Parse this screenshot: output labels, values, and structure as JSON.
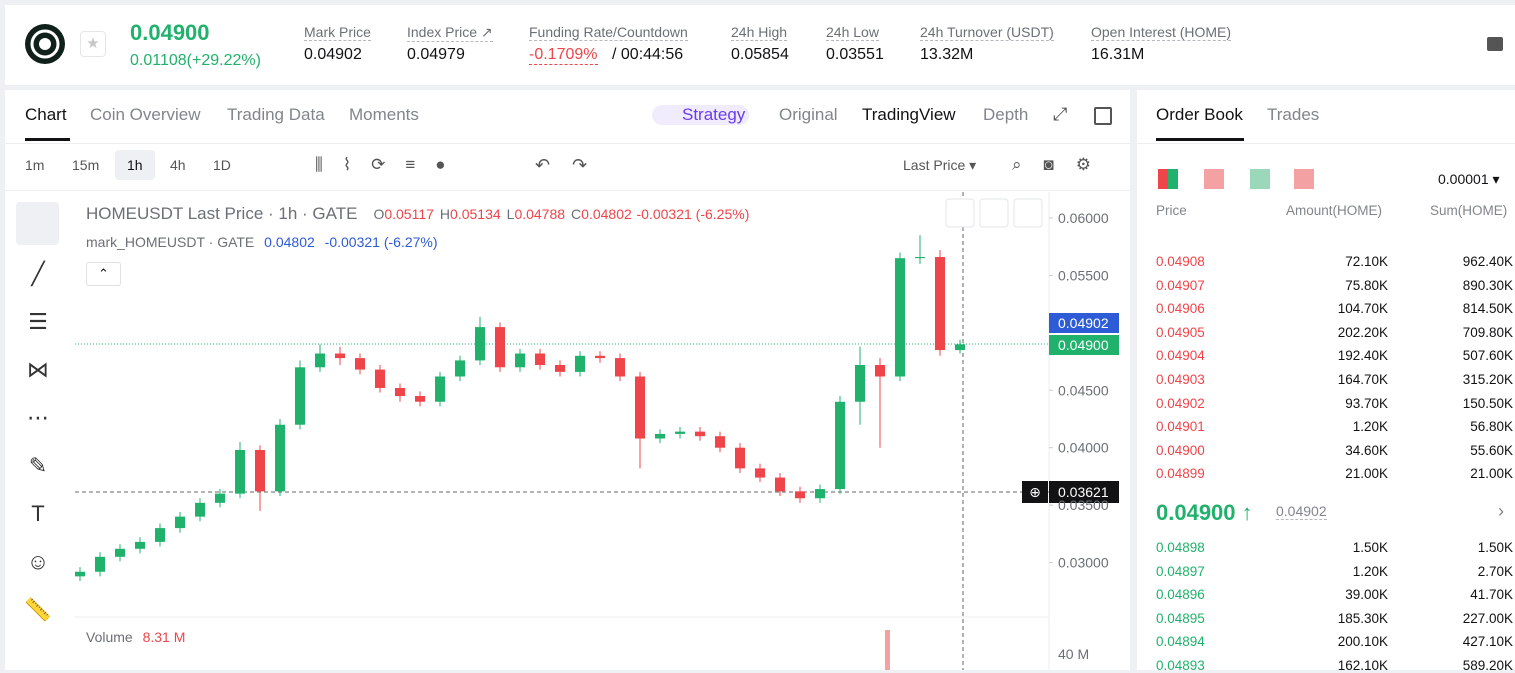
{
  "header": {
    "price": "0.04900",
    "change": "0.01108(+29.22%)",
    "stats": [
      {
        "label": "Mark Price",
        "value": "0.04902"
      },
      {
        "label": "Index Price ↗",
        "value": "0.04979"
      },
      {
        "label": "Funding Rate/Countdown",
        "value": "-0.1709%",
        "extra": "/ 00:44:56"
      },
      {
        "label": "24h High",
        "value": "0.05854"
      },
      {
        "label": "24h Low",
        "value": "0.03551"
      },
      {
        "label": "24h Turnover (USDT)",
        "value": "13.32M"
      },
      {
        "label": "Open Interest (HOME)",
        "value": "16.31M"
      }
    ]
  },
  "chart_tabs": [
    "Chart",
    "Coin Overview",
    "Trading Data",
    "Moments"
  ],
  "view_tabs": [
    "Strategy",
    "Original",
    "TradingView",
    "Depth"
  ],
  "intervals": [
    "1m",
    "15m",
    "1h",
    "4h",
    "1D"
  ],
  "price_type": "Last Price",
  "legend": {
    "title": "HOMEUSDT Last Price · 1h · GATE",
    "ohlc": [
      {
        "key": "O",
        "value": "0.05117"
      },
      {
        "key": "H",
        "value": "0.05134"
      },
      {
        "key": "L",
        "value": "0.04788"
      },
      {
        "key": "C",
        "value": "0.04802"
      }
    ],
    "change": "-0.00321 (-6.25%)",
    "mark_title": "mark_HOMEUSDT · GATE",
    "mark_value": "0.04802",
    "mark_change": "-0.00321 (-6.27%)"
  },
  "price_tags": {
    "mark": "0.04902",
    "last": "0.04900",
    "crosshair": "0.03621"
  },
  "volume": {
    "label": "Volume",
    "value": "8.31 M",
    "axis": "40 M"
  },
  "chart_data": {
    "type": "candlestick",
    "up_color": "#20b26c",
    "down_color": "#ef454a",
    "ylim": [
      0.025,
      0.062
    ],
    "yticks": [
      {
        "value": 0.06,
        "label": "0.06000"
      },
      {
        "value": 0.055,
        "label": "0.05500"
      },
      {
        "value": 0.045,
        "label": "0.04500"
      },
      {
        "value": 0.04,
        "label": "0.04000"
      },
      {
        "value": 0.035,
        "label": "0.03500"
      },
      {
        "value": 0.03,
        "label": "0.03000"
      }
    ],
    "open": [
      0.0288,
      0.0292,
      0.0305,
      0.0312,
      0.0318,
      0.033,
      0.034,
      0.0352,
      0.036,
      0.0398,
      0.0362,
      0.042,
      0.047,
      0.0482,
      0.0478,
      0.0468,
      0.0452,
      0.0445,
      0.044,
      0.0462,
      0.0476,
      0.0505,
      0.047,
      0.0482,
      0.0472,
      0.0466,
      0.048,
      0.0478,
      0.0462,
      0.0408,
      0.0412,
      0.0414,
      0.041,
      0.04,
      0.0382,
      0.0374,
      0.0362,
      0.0356,
      0.0364,
      0.044,
      0.0472,
      0.0462,
      0.0565,
      0.0566,
      0.0485
    ],
    "high": [
      0.0296,
      0.0309,
      0.0316,
      0.0322,
      0.0334,
      0.0344,
      0.0356,
      0.0364,
      0.0405,
      0.0402,
      0.0425,
      0.0476,
      0.049,
      0.0488,
      0.0482,
      0.0472,
      0.0456,
      0.0449,
      0.0466,
      0.048,
      0.0514,
      0.0509,
      0.0486,
      0.0486,
      0.0476,
      0.0484,
      0.0484,
      0.0482,
      0.0466,
      0.0416,
      0.0418,
      0.0418,
      0.0414,
      0.0404,
      0.0386,
      0.0378,
      0.0366,
      0.0368,
      0.0445,
      0.0488,
      0.0478,
      0.057,
      0.0585,
      0.0572,
      0.0494
    ],
    "low": [
      0.0284,
      0.0288,
      0.0301,
      0.0308,
      0.0314,
      0.0326,
      0.0336,
      0.0348,
      0.0356,
      0.0345,
      0.0358,
      0.0416,
      0.0466,
      0.0472,
      0.0464,
      0.0448,
      0.044,
      0.0436,
      0.0436,
      0.0458,
      0.0472,
      0.0466,
      0.0466,
      0.0468,
      0.0462,
      0.0462,
      0.0474,
      0.0458,
      0.0382,
      0.0404,
      0.0408,
      0.0406,
      0.0396,
      0.0378,
      0.037,
      0.0358,
      0.0352,
      0.0352,
      0.036,
      0.042,
      0.04,
      0.0458,
      0.056,
      0.048,
      0.0482
    ],
    "close": [
      0.0292,
      0.0305,
      0.0312,
      0.0318,
      0.033,
      0.034,
      0.0352,
      0.036,
      0.0398,
      0.0362,
      0.042,
      0.047,
      0.0482,
      0.0478,
      0.0468,
      0.0452,
      0.0445,
      0.044,
      0.0462,
      0.0476,
      0.0505,
      0.047,
      0.0482,
      0.0472,
      0.0466,
      0.048,
      0.0478,
      0.0462,
      0.0408,
      0.0412,
      0.0414,
      0.041,
      0.04,
      0.0382,
      0.0374,
      0.0362,
      0.0356,
      0.0364,
      0.044,
      0.0472,
      0.0462,
      0.0565,
      0.0566,
      0.0485,
      0.049
    ]
  },
  "order_book": {
    "tabs": [
      "Order Book",
      "Trades"
    ],
    "precision": "0.00001",
    "columns": [
      "Price",
      "Amount(HOME)",
      "Sum(HOME)"
    ],
    "asks": [
      [
        "0.04908",
        "72.10K",
        "962.40K"
      ],
      [
        "0.04907",
        "75.80K",
        "890.30K"
      ],
      [
        "0.04906",
        "104.70K",
        "814.50K"
      ],
      [
        "0.04905",
        "202.20K",
        "709.80K"
      ],
      [
        "0.04904",
        "192.40K",
        "507.60K"
      ],
      [
        "0.04903",
        "164.70K",
        "315.20K"
      ],
      [
        "0.04902",
        "93.70K",
        "150.50K"
      ],
      [
        "0.04901",
        "1.20K",
        "56.80K"
      ],
      [
        "0.04900",
        "34.60K",
        "55.60K"
      ],
      [
        "0.04899",
        "21.00K",
        "21.00K"
      ]
    ],
    "last_price": "0.04900",
    "mark_price": "0.04902",
    "bids": [
      [
        "0.04898",
        "1.50K",
        "1.50K"
      ],
      [
        "0.04897",
        "1.20K",
        "2.70K"
      ],
      [
        "0.04896",
        "39.00K",
        "41.70K"
      ],
      [
        "0.04895",
        "185.30K",
        "227.00K"
      ],
      [
        "0.04894",
        "200.10K",
        "427.10K"
      ],
      [
        "0.04893",
        "162.10K",
        "589.20K"
      ]
    ]
  }
}
